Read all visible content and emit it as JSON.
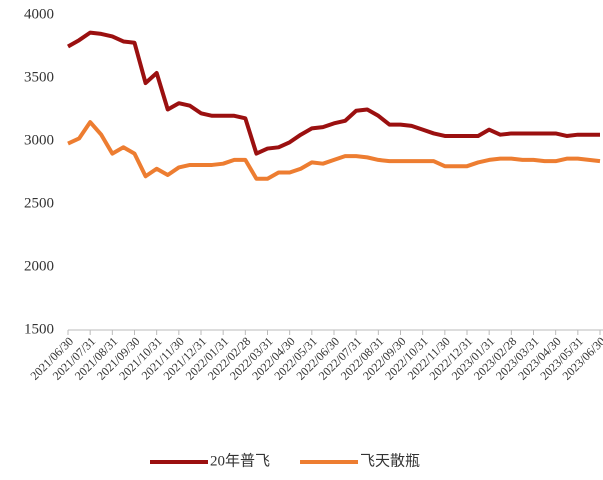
{
  "chart_data": {
    "type": "line",
    "categories": [
      "2021/06/30",
      null,
      "2021/07/31",
      null,
      "2021/08/31",
      null,
      "2021/09/30",
      null,
      "2021/10/31",
      null,
      "2021/11/30",
      null,
      "2021/12/31",
      null,
      "2022/01/31",
      null,
      "2022/02/28",
      null,
      "2022/03/31",
      null,
      "2022/04/30",
      null,
      "2022/05/31",
      null,
      "2022/06/30",
      null,
      "2022/07/31",
      null,
      "2022/08/31",
      null,
      "2022/09/30",
      null,
      "2022/10/31",
      null,
      "2022/11/30",
      null,
      "2022/12/31",
      null,
      "2023/01/31",
      null,
      "2023/02/28",
      null,
      "2023/03/31",
      null,
      "2023/04/30",
      null,
      "2023/05/31",
      null,
      "2023/06/30"
    ],
    "series": [
      {
        "name": "20年普飞",
        "color": "#9b1010",
        "values": [
          3750,
          3800,
          3860,
          3850,
          3830,
          3790,
          3780,
          3460,
          3540,
          3250,
          3300,
          3280,
          3220,
          3200,
          3200,
          3200,
          3180,
          2900,
          2940,
          2950,
          2990,
          3050,
          3100,
          3110,
          3140,
          3160,
          3240,
          3250,
          3200,
          3130,
          3130,
          3120,
          3090,
          3060,
          3040,
          3040,
          3040,
          3040,
          3090,
          3050,
          3060,
          3060,
          3060,
          3060,
          3060,
          3040,
          3050,
          3050,
          3050
        ]
      },
      {
        "name": "飞天散瓶",
        "color": "#ed7d31",
        "values": [
          2980,
          3020,
          3150,
          3050,
          2900,
          2950,
          2900,
          2720,
          2780,
          2730,
          2790,
          2810,
          2810,
          2810,
          2820,
          2850,
          2850,
          2700,
          2700,
          2750,
          2750,
          2780,
          2830,
          2820,
          2850,
          2880,
          2880,
          2870,
          2850,
          2840,
          2840,
          2840,
          2840,
          2840,
          2800,
          2800,
          2800,
          2830,
          2850,
          2860,
          2860,
          2850,
          2850,
          2840,
          2840,
          2860,
          2860,
          2850,
          2840
        ]
      }
    ],
    "ylim": [
      1500,
      4000
    ],
    "yticks": [
      1500,
      2000,
      2500,
      3000,
      3500,
      4000
    ],
    "legend": "bottom"
  }
}
